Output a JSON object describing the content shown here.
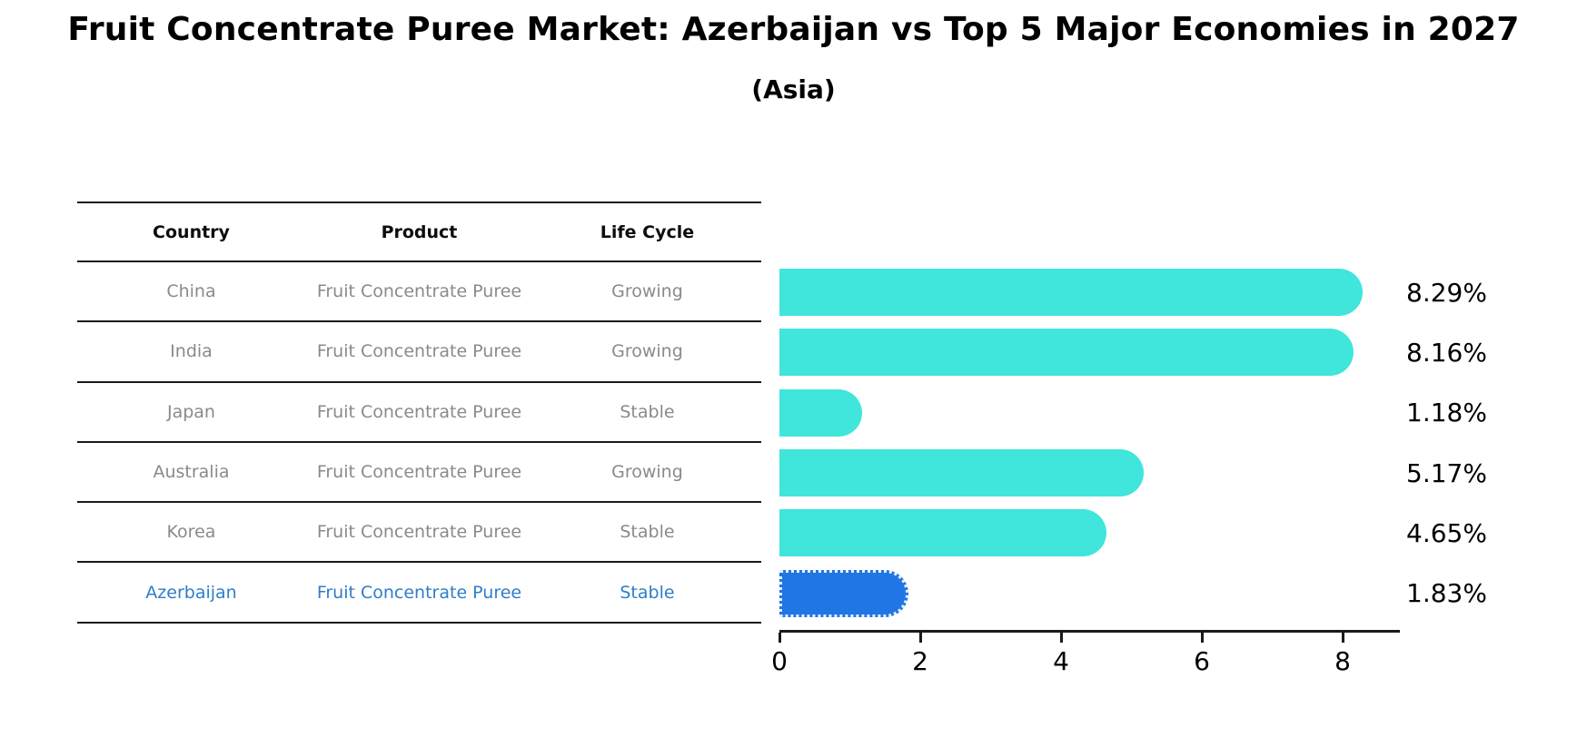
{
  "header": {
    "title": "Fruit Concentrate Puree Market: Azerbaijan vs Top 5 Major Economies in 2027",
    "subtitle": "(Asia)"
  },
  "table": {
    "headers": [
      "Country",
      "Product",
      "Life Cycle"
    ],
    "rows": [
      {
        "country": "China",
        "product": "Fruit Concentrate Puree",
        "life_cycle": "Growing"
      },
      {
        "country": "India",
        "product": "Fruit Concentrate Puree",
        "life_cycle": "Growing"
      },
      {
        "country": "Japan",
        "product": "Fruit Concentrate Puree",
        "life_cycle": "Stable"
      },
      {
        "country": "Australia",
        "product": "Fruit Concentrate Puree",
        "life_cycle": "Growing"
      },
      {
        "country": "Korea",
        "product": "Fruit Concentrate Puree",
        "life_cycle": "Stable"
      },
      {
        "country": "Azerbaijan",
        "product": "Fruit Concentrate Puree",
        "life_cycle": "Stable"
      }
    ],
    "highlight_row": "Azerbaijan"
  },
  "chart_data": {
    "type": "bar",
    "orientation": "horizontal",
    "title": "Fruit Concentrate Puree Market: Azerbaijan vs Top 5 Major Economies in 2027 (Asia)",
    "categories": [
      "China",
      "India",
      "Japan",
      "Australia",
      "Korea",
      "Azerbaijan"
    ],
    "values": [
      8.29,
      8.16,
      1.18,
      5.17,
      4.65,
      1.83
    ],
    "value_labels": [
      "8.29%",
      "8.16%",
      "1.18%",
      "5.17%",
      "4.65%",
      "1.83%"
    ],
    "xlabel": "",
    "ylabel": "",
    "xlim": [
      0,
      8.8
    ],
    "xticks": [
      0,
      2,
      4,
      6,
      8
    ],
    "xtick_labels": [
      "0",
      "2",
      "4",
      "6",
      "8"
    ],
    "grid": false,
    "legend": false,
    "bar_color": "#40e5dc",
    "highlight_bar_color": "#2076e4",
    "highlight_index": 5
  },
  "colors": {
    "text_muted": "#8a8a8a",
    "text_heading": "#0d0d0d",
    "highlight_text": "#2e7ec9",
    "rule": "#1a1a1a",
    "axis": "#1a1a1a"
  }
}
